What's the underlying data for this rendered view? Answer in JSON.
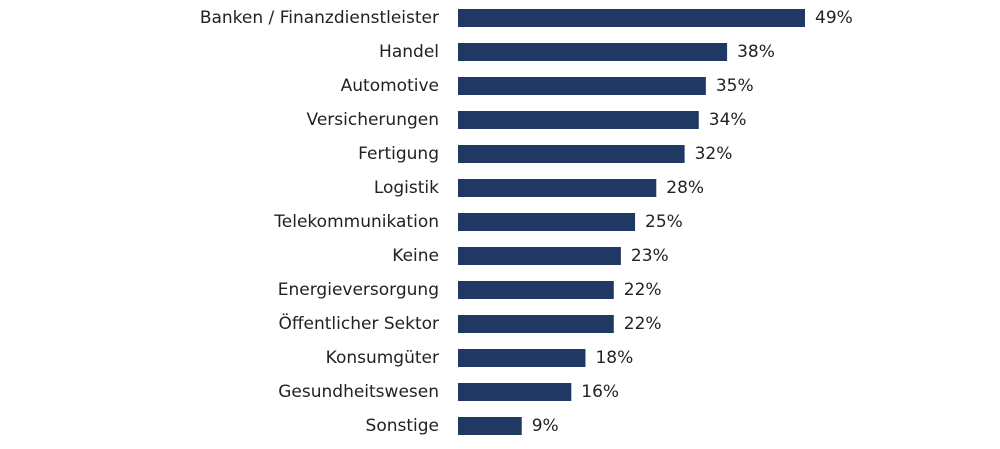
{
  "chart_data": {
    "type": "bar",
    "orientation": "horizontal",
    "title": "",
    "xlabel": "",
    "ylabel": "",
    "grid": false,
    "legend": "none",
    "value_suffix": "%",
    "xlim": [
      0,
      49
    ],
    "bar_color": "#1f3864",
    "categories": [
      "Banken / Finanzdienstleister",
      "Handel",
      "Automotive",
      "Versicherungen",
      "Fertigung",
      "Logistik",
      "Telekommunikation",
      "Keine",
      "Energieversorgung",
      "Öffentlicher Sektor",
      "Konsumgüter",
      "Gesundheitswesen",
      "Sonstige"
    ],
    "values": [
      49,
      38,
      35,
      34,
      32,
      28,
      25,
      23,
      22,
      22,
      18,
      16,
      9
    ],
    "value_labels": [
      "49%",
      "38%",
      "35%",
      "34%",
      "32%",
      "28%",
      "25%",
      "23%",
      "22%",
      "22%",
      "18%",
      "16%",
      "9%"
    ]
  }
}
